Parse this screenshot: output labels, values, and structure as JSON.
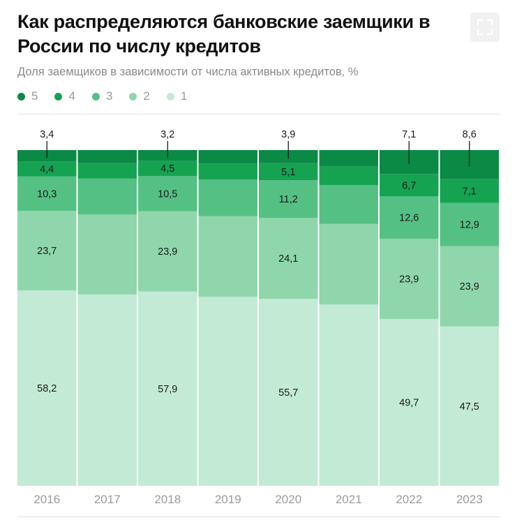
{
  "header": {
    "title": "Как распределяются банковские заемщики в России по числу кредитов",
    "subtitle": "Доля заемщиков в зависимости от числа активных кредитов, %",
    "expand_icon": "fullscreen-expand-icon"
  },
  "legend": [
    {
      "label": "5",
      "color": "#0b8a45"
    },
    {
      "label": "4",
      "color": "#15a352"
    },
    {
      "label": "3",
      "color": "#55c084"
    },
    {
      "label": "2",
      "color": "#8fd6ac"
    },
    {
      "label": "1",
      "color": "#c3ead4"
    }
  ],
  "chart_data": {
    "type": "bar",
    "stacked": true,
    "normalized_to": 100,
    "title": "Как распределяются банковские заемщики в России по числу кредитов",
    "subtitle": "Доля заемщиков в зависимости от числа активных кредитов, %",
    "categories": [
      "2016",
      "2017",
      "2018",
      "2019",
      "2020",
      "2021",
      "2022",
      "2023"
    ],
    "series": [
      {
        "name": "1",
        "color": "#c3ead4",
        "values": [
          58.2,
          57.0,
          57.9,
          56.3,
          55.7,
          54.0,
          49.7,
          47.5
        ],
        "labels": [
          "58,2",
          null,
          "57,9",
          null,
          "55,7",
          null,
          "49,7",
          "47,5"
        ]
      },
      {
        "name": "2",
        "color": "#8fd6ac",
        "values": [
          23.7,
          23.8,
          23.9,
          24.0,
          24.1,
          24.0,
          23.9,
          23.9
        ],
        "labels": [
          "23,7",
          null,
          "23,9",
          null,
          "24,1",
          null,
          "23,9",
          "23,9"
        ]
      },
      {
        "name": "3",
        "color": "#55c084",
        "values": [
          10.3,
          10.7,
          10.5,
          10.9,
          11.2,
          11.6,
          12.6,
          12.9
        ],
        "labels": [
          "10,3",
          null,
          "10,5",
          null,
          "11,2",
          null,
          "12,6",
          "12,9"
        ]
      },
      {
        "name": "4",
        "color": "#15a352",
        "values": [
          4.4,
          4.6,
          4.5,
          4.8,
          5.1,
          5.6,
          6.7,
          7.1
        ],
        "labels": [
          "4,4",
          null,
          "4,5",
          null,
          "5,1",
          null,
          "6,7",
          "7,1"
        ]
      },
      {
        "name": "5",
        "color": "#0b8a45",
        "values": [
          3.4,
          3.9,
          3.2,
          4.0,
          3.9,
          4.8,
          7.1,
          8.6
        ],
        "labels": [
          "3,4",
          null,
          "3,2",
          null,
          "3,9",
          null,
          "7,1",
          "8,6"
        ]
      }
    ],
    "ylim": [
      0,
      100
    ],
    "xlabel": "",
    "ylabel": "",
    "legend_position": "top-left"
  }
}
